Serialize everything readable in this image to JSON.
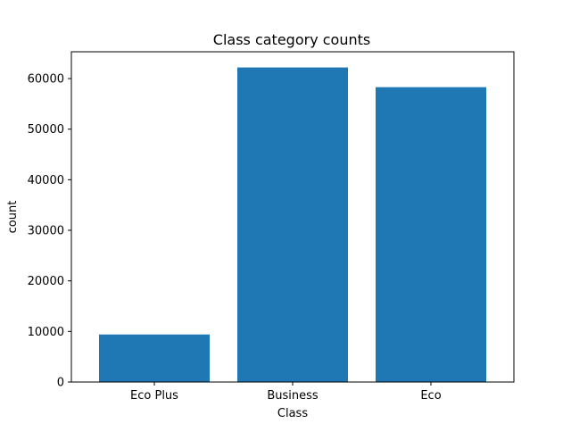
{
  "chart_data": {
    "type": "bar",
    "title": "Class category counts",
    "xlabel": "Class",
    "ylabel": "count",
    "categories": [
      "Eco Plus",
      "Business",
      "Eco"
    ],
    "values": [
      9400,
      62200,
      58300
    ],
    "ylim": [
      0,
      65300
    ],
    "yticks": [
      0,
      10000,
      20000,
      30000,
      40000,
      50000,
      60000
    ],
    "bar_color": "#1f77b4",
    "grid": false,
    "legend": false
  }
}
